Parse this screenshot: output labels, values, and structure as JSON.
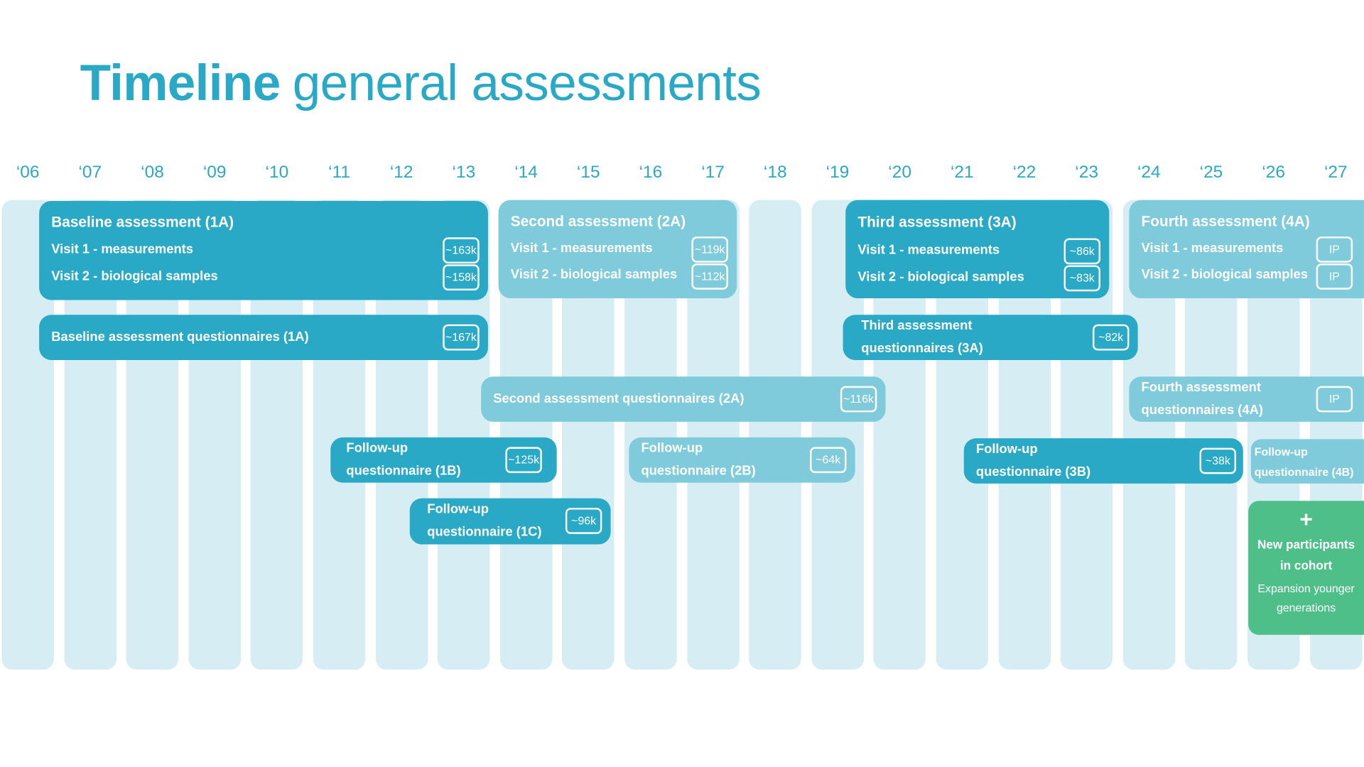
{
  "title": {
    "bold": "Timeline",
    "rest": "general assessments"
  },
  "years": [
    "‘06",
    "‘07",
    "‘08",
    "‘09",
    "‘10",
    "‘11",
    "‘12",
    "‘13",
    "‘14",
    "‘15",
    "‘16",
    "‘17",
    "‘18",
    "‘19",
    "‘20",
    "‘21",
    "‘22",
    "‘23",
    "‘24",
    "‘25",
    "‘26",
    "‘27"
  ],
  "colors": {
    "dark": "#29a9c5",
    "light": "#7fcbdb",
    "green": "#4fbf8a",
    "column": "#d5edf3"
  },
  "a1": {
    "title": "Baseline assessment (1A)",
    "v1": "Visit 1 - measurements",
    "v1n": "~163k",
    "v2": "Visit 2 - biological samples",
    "v2n": "~158k"
  },
  "a2": {
    "title": "Second assessment (2A)",
    "v1": "Visit 1 - measurements",
    "v1n": "~119k",
    "v2": "Visit 2 - biological samples",
    "v2n": "~112k"
  },
  "a3": {
    "title": "Third assessment (3A)",
    "v1": "Visit 1 - measurements",
    "v1n": "~86k",
    "v2": "Visit 2 - biological samples",
    "v2n": "~83k"
  },
  "a4": {
    "title": "Fourth assessment (4A)",
    "v1": "Visit 1 - measurements",
    "v1n": "IP",
    "v2": "Visit 2 - biological samples",
    "v2n": "IP"
  },
  "q1a": {
    "label": "Baseline assessment questionnaires (1A)",
    "n": "~167k"
  },
  "q3a": {
    "l1": "Third assessment",
    "l2": "questionnaires (3A)",
    "n": "~82k"
  },
  "q2a": {
    "label": "Second assessment questionnaires (2A)",
    "n": "~116k"
  },
  "q4a": {
    "l1": "Fourth assessment",
    "l2": "questionnaires (4A)",
    "n": "IP"
  },
  "f1b": {
    "l1": "Follow-up",
    "l2": "questionnaire (1B)",
    "n": "~125k"
  },
  "f2b": {
    "l1": "Follow-up",
    "l2": "questionnaire (2B)",
    "n": "~64k"
  },
  "f3b": {
    "l1": "Follow-up",
    "l2": "questionnaire (3B)",
    "n": "~38k"
  },
  "f4b": {
    "l1": "Follow-up",
    "l2": "questionnaire (4B)"
  },
  "f1c": {
    "l1": "Follow-up",
    "l2": "questionnaire (1C)",
    "n": "~96k"
  },
  "newp": {
    "plus": "+",
    "l1": "New participants",
    "l2": "in cohort",
    "s1": "Expansion younger",
    "s2": "generations"
  }
}
